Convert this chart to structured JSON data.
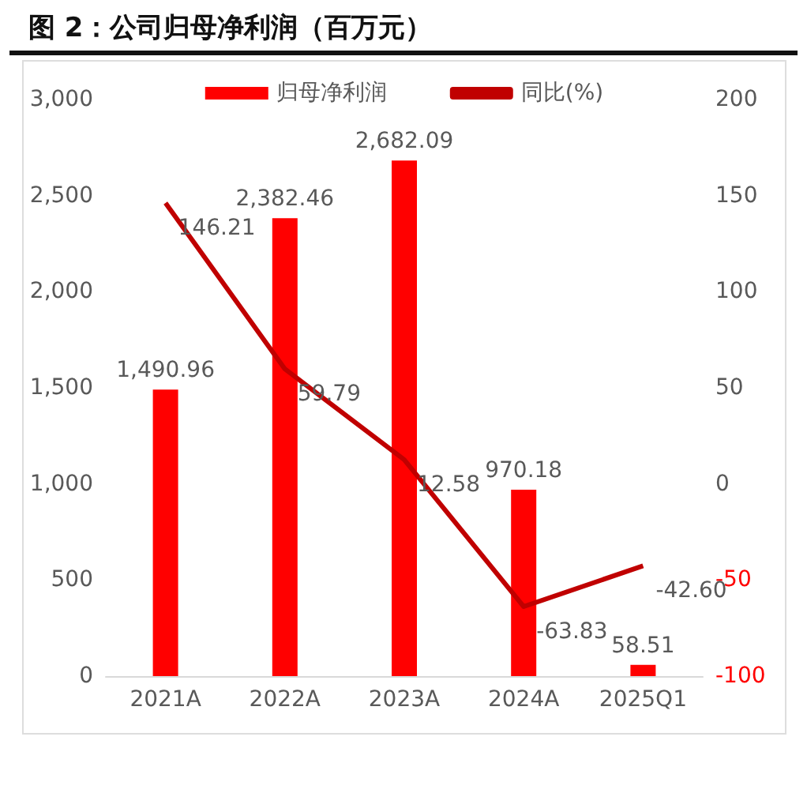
{
  "chart_data": {
    "type": "bar",
    "title": "图 2：公司归母净利润（百万元）",
    "categories": [
      "2021A",
      "2022A",
      "2023A",
      "2024A",
      "2025Q1"
    ],
    "series": [
      {
        "name": "归母净利润",
        "color": "#ff0000",
        "values": [
          1490.96,
          2382.46,
          2682.09,
          970.18,
          58.51
        ],
        "value_labels": [
          "1,490.96",
          "2,382.46",
          "2,682.09",
          "970.18",
          "58.51"
        ]
      },
      {
        "name": "同比(%)",
        "type": "line",
        "axis": "y2",
        "color": "#c00000",
        "values": [
          146.21,
          59.79,
          12.58,
          -63.83,
          -42.6
        ],
        "value_labels": [
          "146.21",
          "59.79",
          "12.58",
          "-63.83",
          "-42.60"
        ]
      }
    ],
    "ylim": [
      0,
      3000
    ],
    "yticks": [
      0,
      500,
      {
        "value": 1000,
        "label": "1,000"
      },
      {
        "value": 1500,
        "label": "1,500"
      },
      {
        "value": 2000,
        "label": "2,000"
      },
      {
        "value": 2500,
        "label": "2,500"
      },
      {
        "value": 3000,
        "label": "3,000"
      }
    ],
    "y2lim": [
      -100,
      200
    ],
    "y2ticks": [
      -100,
      -50,
      0,
      50,
      100,
      150,
      200
    ],
    "legend": "top",
    "grid": false,
    "marker": "none",
    "line_style": "solid"
  }
}
